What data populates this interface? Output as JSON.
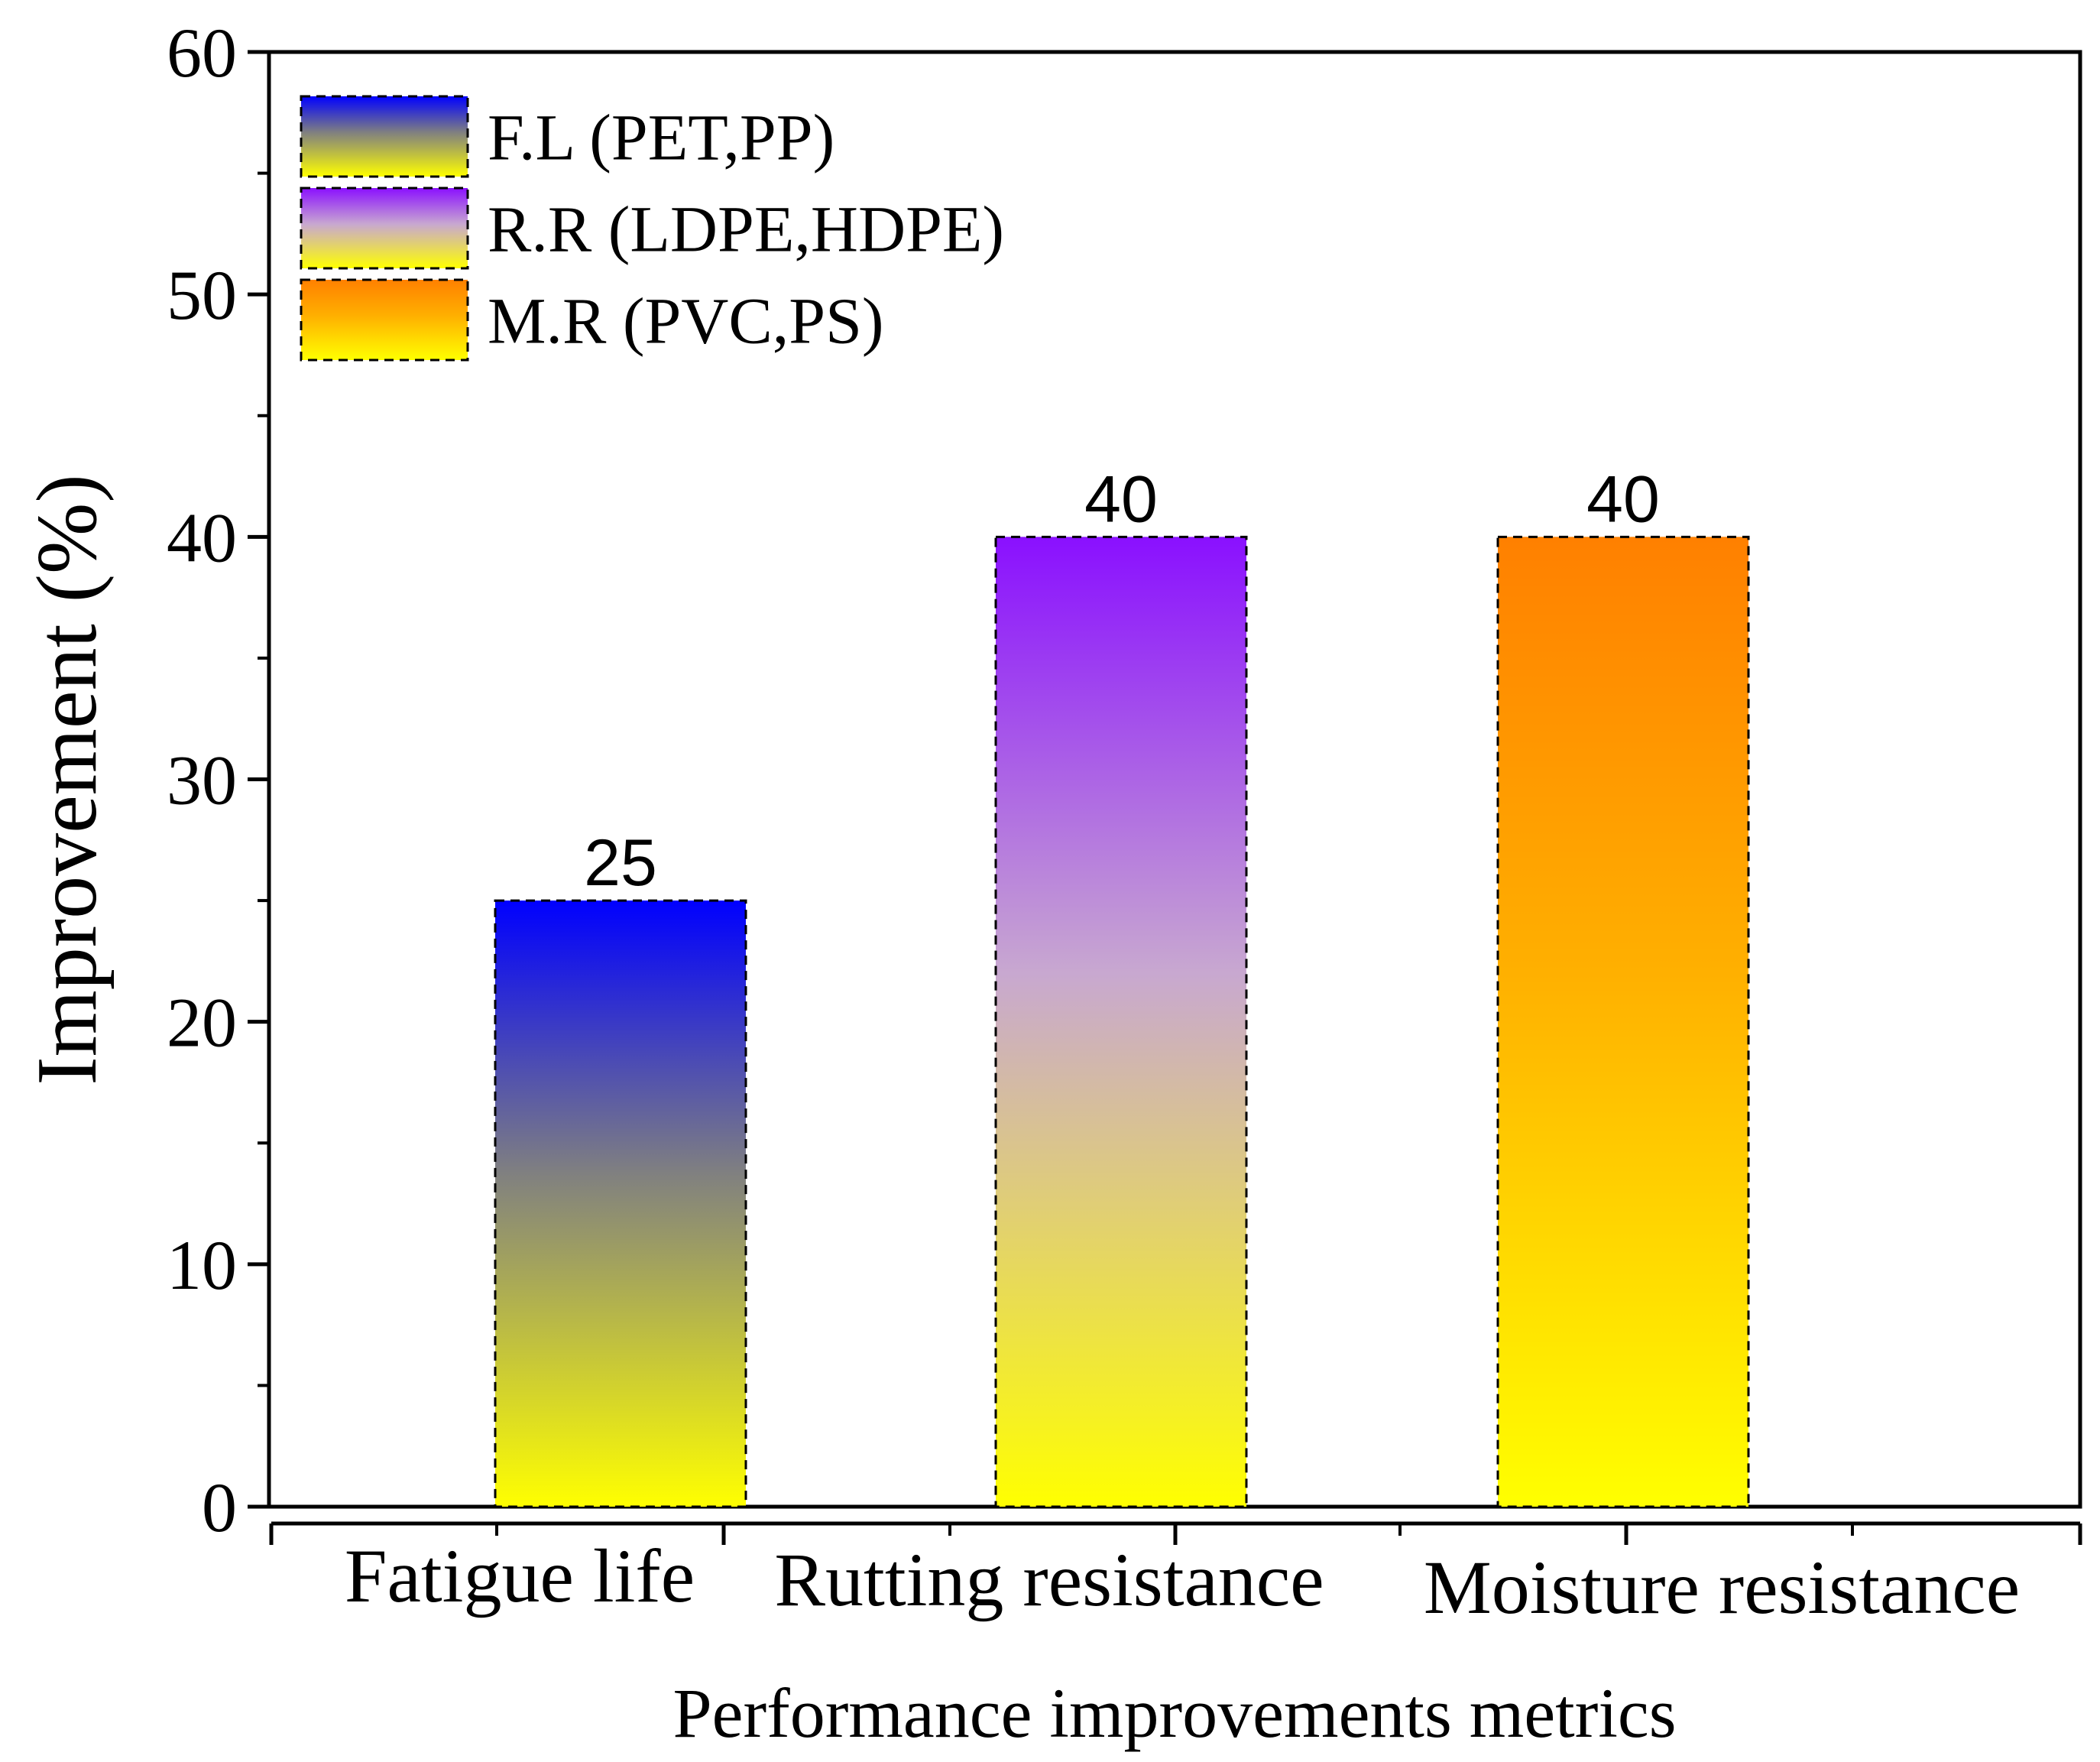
{
  "chart_data": {
    "type": "bar",
    "title": "",
    "xlabel": "Performance improvements metrics",
    "ylabel": "Improvement (%)",
    "ylim": [
      0,
      60
    ],
    "yticks": [
      0,
      10,
      20,
      30,
      40,
      50,
      60
    ],
    "grid": false,
    "legend_position": "top-left",
    "categories": [
      "Fatigue life",
      "Rutting resistance",
      "Moisture resistance"
    ],
    "series": [
      {
        "name": "F.L (PET,PP)",
        "category": "Fatigue life",
        "value": 25,
        "label": "25",
        "colors": {
          "top": "#0000ff",
          "mid": "#808080",
          "bottom": "#ffff00"
        }
      },
      {
        "name": "R.R (LDPE,HDPE)",
        "category": "Rutting resistance",
        "value": 40,
        "label": "40",
        "colors": {
          "top": "#8a10ff",
          "mid": "#c8a8d0",
          "bottom": "#ffff00"
        }
      },
      {
        "name": "M.R (PVC,PS)",
        "category": "Moisture resistance",
        "value": 40,
        "label": "40",
        "colors": {
          "top": "#ff8000",
          "mid": "#ffb000",
          "bottom": "#ffff00"
        }
      }
    ]
  }
}
